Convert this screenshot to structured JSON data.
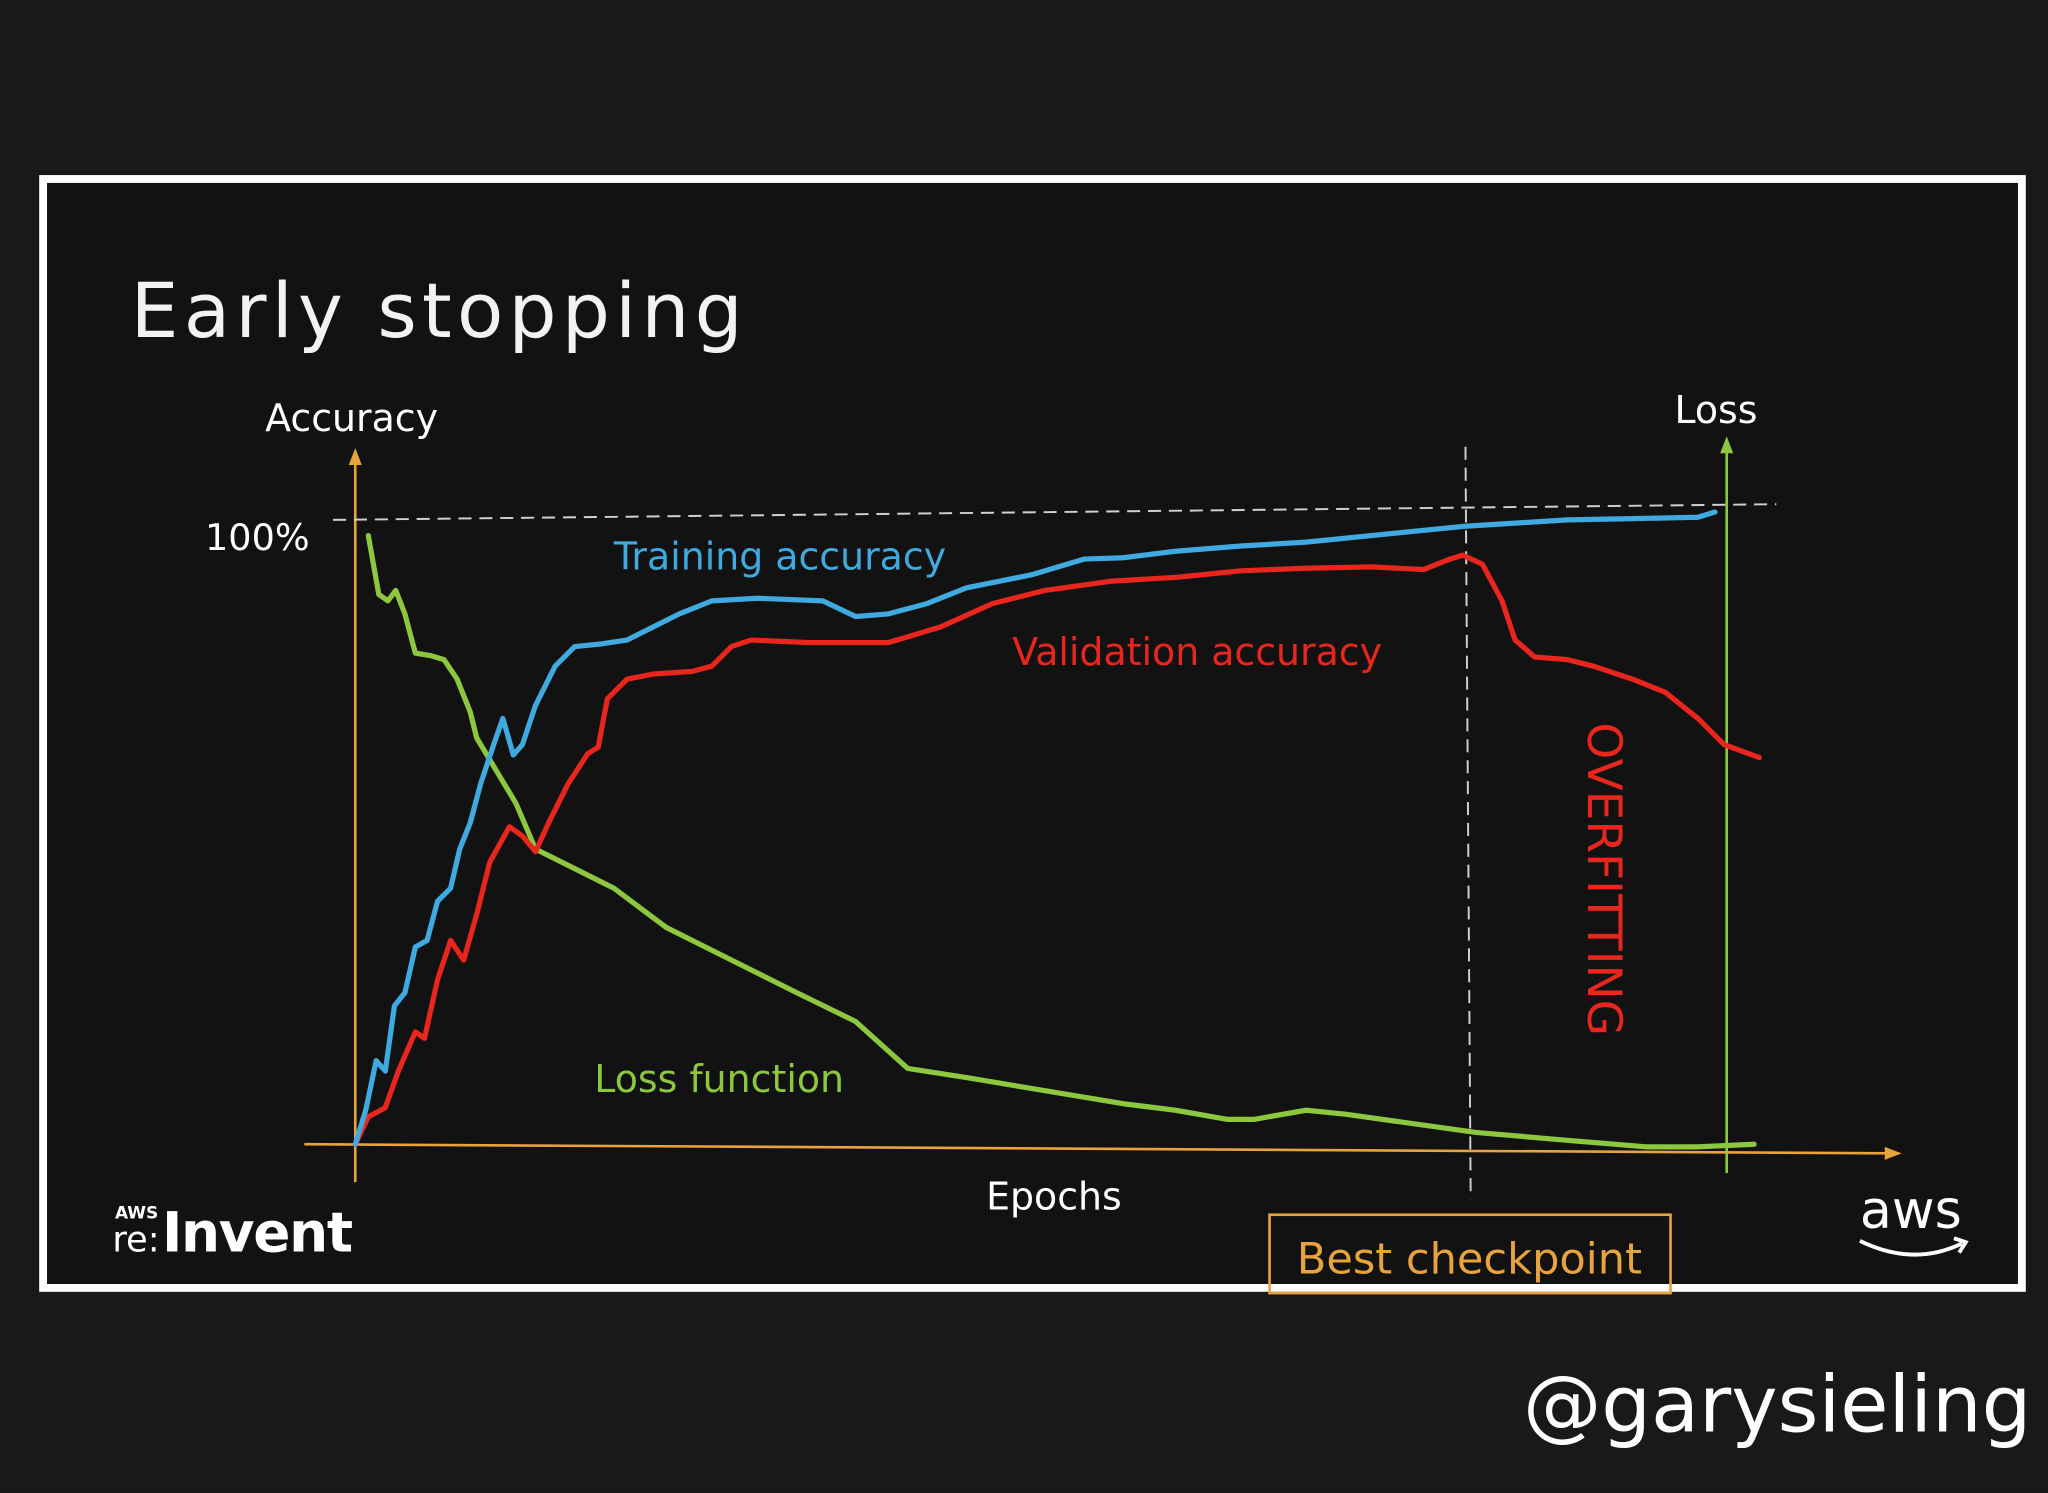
{
  "slide": {
    "title": "Early stopping",
    "y_axis_label": "Accuracy",
    "y2_axis_label": "Loss",
    "y_tick": "100%",
    "x_axis_label": "Epochs",
    "series_labels": [
      "Training accuracy",
      "Validation accuracy",
      "Loss function"
    ],
    "annotations": {
      "overfitting": "OVERFITTING",
      "best_checkpoint": "Best checkpoint"
    },
    "logos": {
      "event_small": "AWS",
      "event_prefix": "re:",
      "event": "Invent",
      "company": "aws"
    }
  },
  "watermark": "@garysieling"
}
